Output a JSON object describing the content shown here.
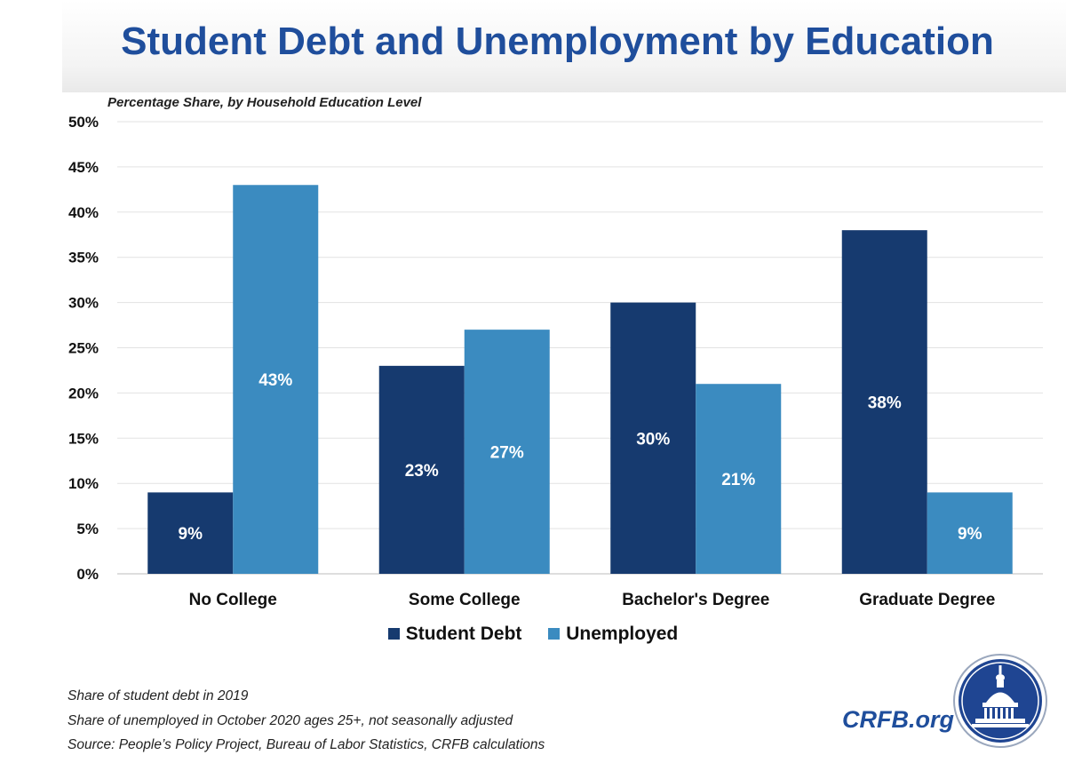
{
  "header": {
    "title": "Student Debt and Unemployment by Education",
    "subtitle": "Percentage Share, by Household Education Level"
  },
  "colors": {
    "title": "#1f4e9c",
    "student_debt": "#163a6f",
    "unemployed": "#3b8bc0"
  },
  "chart_data": {
    "type": "bar",
    "categories": [
      "No College",
      "Some College",
      "Bachelor's Degree",
      "Graduate Degree"
    ],
    "series": [
      {
        "name": "Student Debt",
        "values": [
          9,
          23,
          30,
          38
        ],
        "value_labels": [
          "9%",
          "23%",
          "30%",
          "38%"
        ]
      },
      {
        "name": "Unemployed",
        "values": [
          43,
          27,
          21,
          9
        ],
        "value_labels": [
          "43%",
          "27%",
          "21%",
          "9%"
        ]
      }
    ],
    "ylim": [
      0,
      50
    ],
    "yticks": [
      0,
      5,
      10,
      15,
      20,
      25,
      30,
      35,
      40,
      45,
      50
    ],
    "ytick_labels": [
      "0%",
      "5%",
      "10%",
      "15%",
      "20%",
      "25%",
      "30%",
      "35%",
      "40%",
      "45%",
      "50%"
    ],
    "grid": true,
    "legend_position": "bottom"
  },
  "notes": [
    "Share of student debt in 2019",
    "Share of unemployed in October 2020 ages 25+, not seasonally adjusted",
    "Source: People’s Policy Project, Bureau of Labor Statistics, CRFB calculations"
  ],
  "brand": {
    "text": "CRFB.org",
    "logo_icon": "capitol-dome-seal-icon"
  }
}
